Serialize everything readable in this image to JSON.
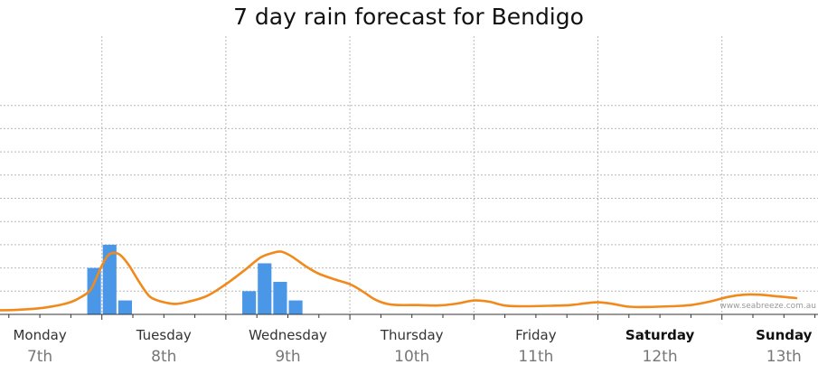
{
  "chart_data": {
    "type": "bar",
    "title": "7 day rain forecast for Bendigo",
    "watermark": "www.seabreeze.com.au",
    "colors": {
      "bars": "#4a97e8",
      "line": "#f08a1c",
      "grid": "#b9b9b9",
      "axis": "#333333"
    },
    "grid": true,
    "days": [
      {
        "day": "Monday",
        "date": "7th",
        "bold": false
      },
      {
        "day": "Tuesday",
        "date": "8th",
        "bold": false
      },
      {
        "day": "Wednesday",
        "date": "9th",
        "bold": false
      },
      {
        "day": "Thursday",
        "date": "10th",
        "bold": false
      },
      {
        "day": "Friday",
        "date": "11th",
        "bold": false
      },
      {
        "day": "Saturday",
        "date": "12th",
        "bold": true
      },
      {
        "day": "Sunday",
        "date": "13th",
        "bold": true
      }
    ],
    "x_range_days": [
      0,
      6.6
    ],
    "ylim": [
      0,
      4.5
    ],
    "bars": {
      "bin_width_days": 0.125,
      "items": [
        {
          "t": 0.875,
          "value": 2.0
        },
        {
          "t": 1.0,
          "value": 3.0
        },
        {
          "t": 1.125,
          "value": 0.6
        },
        {
          "t": 2.125,
          "value": 1.0
        },
        {
          "t": 2.25,
          "value": 2.2
        },
        {
          "t": 2.375,
          "value": 1.4
        },
        {
          "t": 2.5,
          "value": 0.6
        }
      ]
    },
    "series": [
      {
        "type": "line",
        "points": [
          [
            0.0,
            0.2
          ],
          [
            0.2,
            0.18
          ],
          [
            0.4,
            0.22
          ],
          [
            0.55,
            0.3
          ],
          [
            0.7,
            0.45
          ],
          [
            0.8,
            0.65
          ],
          [
            0.9,
            1.0
          ],
          [
            0.95,
            1.5
          ],
          [
            1.0,
            2.1
          ],
          [
            1.05,
            2.55
          ],
          [
            1.1,
            2.65
          ],
          [
            1.15,
            2.55
          ],
          [
            1.22,
            2.1
          ],
          [
            1.3,
            1.4
          ],
          [
            1.38,
            0.8
          ],
          [
            1.45,
            0.6
          ],
          [
            1.52,
            0.5
          ],
          [
            1.6,
            0.45
          ],
          [
            1.7,
            0.55
          ],
          [
            1.85,
            0.8
          ],
          [
            2.0,
            1.3
          ],
          [
            2.15,
            1.9
          ],
          [
            2.28,
            2.45
          ],
          [
            2.38,
            2.65
          ],
          [
            2.45,
            2.7
          ],
          [
            2.53,
            2.5
          ],
          [
            2.65,
            2.05
          ],
          [
            2.75,
            1.75
          ],
          [
            2.88,
            1.5
          ],
          [
            3.0,
            1.3
          ],
          [
            3.1,
            1.0
          ],
          [
            3.2,
            0.65
          ],
          [
            3.3,
            0.45
          ],
          [
            3.4,
            0.4
          ],
          [
            3.55,
            0.4
          ],
          [
            3.7,
            0.38
          ],
          [
            3.85,
            0.45
          ],
          [
            4.0,
            0.6
          ],
          [
            4.12,
            0.55
          ],
          [
            4.25,
            0.38
          ],
          [
            4.4,
            0.35
          ],
          [
            4.6,
            0.37
          ],
          [
            4.78,
            0.4
          ],
          [
            4.9,
            0.48
          ],
          [
            5.0,
            0.52
          ],
          [
            5.12,
            0.45
          ],
          [
            5.25,
            0.33
          ],
          [
            5.4,
            0.32
          ],
          [
            5.6,
            0.35
          ],
          [
            5.75,
            0.4
          ],
          [
            5.9,
            0.55
          ],
          [
            6.05,
            0.75
          ],
          [
            6.18,
            0.85
          ],
          [
            6.3,
            0.85
          ],
          [
            6.4,
            0.8
          ],
          [
            6.5,
            0.75
          ],
          [
            6.6,
            0.7
          ]
        ]
      }
    ]
  }
}
